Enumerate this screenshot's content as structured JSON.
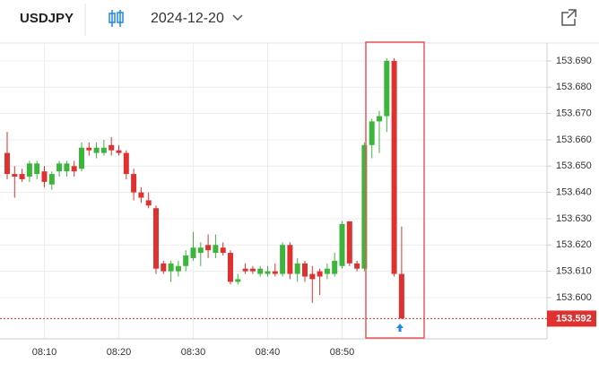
{
  "header": {
    "symbol": "USDJPY",
    "date": "2024-12-20"
  },
  "chart_data": {
    "type": "candlestick",
    "categories": [
      null,
      null,
      null,
      null,
      null,
      "08:10",
      null,
      null,
      null,
      null,
      null,
      null,
      null,
      null,
      null,
      "08:20",
      null,
      null,
      null,
      null,
      null,
      null,
      null,
      null,
      null,
      "08:30",
      null,
      null,
      null,
      null,
      null,
      null,
      null,
      null,
      null,
      "08:40",
      null,
      null,
      null,
      null,
      null,
      null,
      null,
      null,
      null,
      "08:50",
      null,
      null,
      null,
      null,
      null,
      null,
      null,
      null
    ],
    "open": [
      153.655,
      153.647,
      153.647,
      153.646,
      153.647,
      153.648,
      153.643,
      153.648,
      153.648,
      153.65,
      153.649,
      153.657,
      153.655,
      153.655,
      153.658,
      153.656,
      153.655,
      153.647,
      153.64,
      153.637,
      153.634,
      153.613,
      153.61,
      153.61,
      153.612,
      153.615,
      153.617,
      153.62,
      153.617,
      153.619,
      153.617,
      153.606,
      153.611,
      153.611,
      153.609,
      153.609,
      153.61,
      153.609,
      153.62,
      153.609,
      153.613,
      153.609,
      153.61,
      153.609,
      153.609,
      153.612,
      153.629,
      153.613,
      153.611,
      153.658,
      153.667,
      153.669,
      153.69,
      153.609
    ],
    "high": [
      153.663,
      153.65,
      153.649,
      153.652,
      153.652,
      153.65,
      153.648,
      153.652,
      153.652,
      153.652,
      153.659,
      153.659,
      153.659,
      153.66,
      153.661,
      153.658,
      153.656,
      153.649,
      153.642,
      153.64,
      153.635,
      153.614,
      153.614,
      153.614,
      153.618,
      153.625,
      153.621,
      153.624,
      153.624,
      153.621,
      153.618,
      153.609,
      153.613,
      153.612,
      153.612,
      153.612,
      153.613,
      153.621,
      153.621,
      153.615,
      153.614,
      153.612,
      153.611,
      153.613,
      153.617,
      153.629,
      153.629,
      153.614,
      153.659,
      153.668,
      153.671,
      153.691,
      153.691,
      153.627
    ],
    "low": [
      153.645,
      153.638,
      153.644,
      153.644,
      153.645,
      153.642,
      153.641,
      153.646,
      153.646,
      153.646,
      153.648,
      153.654,
      153.653,
      153.654,
      153.654,
      153.654,
      153.645,
      153.637,
      153.636,
      153.634,
      153.609,
      153.609,
      153.606,
      153.608,
      153.61,
      153.614,
      153.612,
      153.615,
      153.615,
      153.616,
      153.605,
      153.605,
      153.609,
      153.609,
      153.608,
      153.608,
      153.608,
      153.608,
      153.607,
      153.606,
      153.606,
      153.598,
      153.601,
      153.607,
      153.608,
      153.611,
      153.612,
      153.61,
      153.61,
      153.653,
      153.655,
      153.663,
      153.608,
      153.592
    ],
    "close": [
      153.647,
      153.646,
      153.645,
      153.651,
      153.651,
      153.644,
      153.647,
      153.651,
      153.651,
      153.648,
      153.657,
      153.656,
      153.657,
      153.657,
      153.656,
      153.655,
      153.647,
      153.64,
      153.638,
      153.635,
      153.611,
      153.61,
      153.613,
      153.612,
      153.616,
      153.619,
      153.619,
      153.618,
      153.62,
      153.617,
      153.606,
      153.607,
      153.61,
      153.61,
      153.611,
      153.61,
      153.609,
      153.62,
      153.609,
      153.613,
      153.608,
      153.607,
      153.608,
      153.611,
      153.614,
      153.628,
      153.613,
      153.611,
      153.658,
      153.667,
      153.669,
      153.69,
      153.609,
      153.592
    ],
    "up_color": "#3db53d",
    "down_color": "#e03131",
    "ylim": [
      153.5843,
      153.6968
    ],
    "yticks": [
      {
        "value": 153.6,
        "label": "153.600"
      },
      {
        "value": 153.61,
        "label": "153.610"
      },
      {
        "value": 153.62,
        "label": "153.620"
      },
      {
        "value": 153.63,
        "label": "153.630"
      },
      {
        "value": 153.64,
        "label": "153.640"
      },
      {
        "value": 153.65,
        "label": "153.650"
      },
      {
        "value": 153.66,
        "label": "153.660"
      },
      {
        "value": 153.67,
        "label": "153.670"
      },
      {
        "value": 153.68,
        "label": "153.680"
      },
      {
        "value": 153.69,
        "label": "153.690"
      }
    ],
    "grid": true,
    "last_price": {
      "value": 153.592,
      "label": "153.592",
      "color": "#e03131"
    }
  }
}
